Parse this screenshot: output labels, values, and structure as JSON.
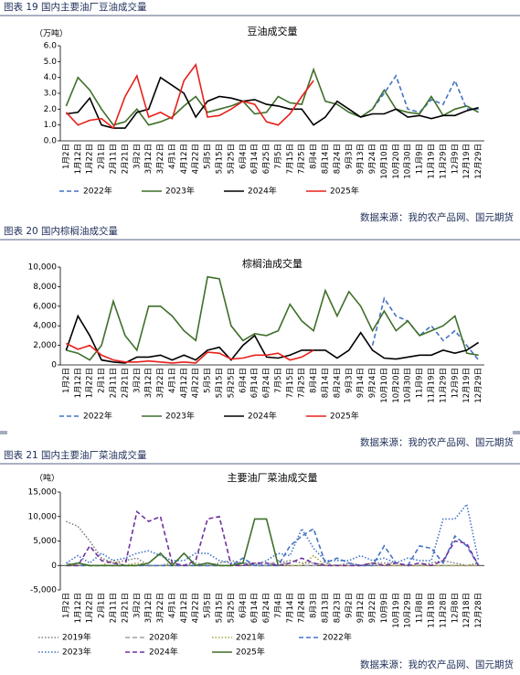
{
  "chart_data": [
    {
      "type": "line",
      "caption": "图表 19 国内主要油厂豆油成交量",
      "title": "豆油成交量",
      "unit": "（万吨）",
      "source": "数据来源：我的农产品网、国元期货",
      "categories": [
        "1月2日",
        "1月12日",
        "1月22日",
        "2月1日",
        "2月11日",
        "2月21日",
        "3月2日",
        "3月12日",
        "3月22日",
        "4月1日",
        "4月12日",
        "4月22日",
        "5月5日",
        "5月15日",
        "5月25日",
        "6月4日",
        "6月14日",
        "6月25日",
        "7月5日",
        "7月15日",
        "7月25日",
        "8月4日",
        "8月14日",
        "8月24日",
        "9月3日",
        "9月13日",
        "9月24日",
        "10月10日",
        "10月20日",
        "10月30日",
        "11月9日",
        "11月19日",
        "11月29日",
        "12月9日",
        "12月19日",
        "12月29日"
      ],
      "ylim": [
        0,
        6
      ],
      "yticks": [
        {
          "value": 0,
          "label": "0.0"
        },
        {
          "value": 1,
          "label": "1.0"
        },
        {
          "value": 2,
          "label": "2.0"
        },
        {
          "value": 3,
          "label": "3.0"
        },
        {
          "value": 4,
          "label": "4.0"
        },
        {
          "value": 5,
          "label": "5.0"
        },
        {
          "value": 6,
          "label": "6.0"
        }
      ],
      "series": [
        {
          "name": "2022年",
          "color": "#4472c4",
          "dash": "dashed",
          "values": [
            null,
            null,
            null,
            null,
            null,
            null,
            null,
            null,
            null,
            null,
            null,
            null,
            null,
            null,
            null,
            null,
            null,
            null,
            null,
            null,
            null,
            null,
            null,
            null,
            null,
            1.5,
            2.0,
            3.0,
            4.1,
            2.0,
            1.8,
            2.6,
            2.3,
            3.8,
            2.0,
            2.0
          ]
        },
        {
          "name": "2023年",
          "color": "#3f6f2a",
          "dash": "solid",
          "values": [
            2.2,
            4.0,
            3.2,
            2.0,
            1.0,
            1.2,
            2.0,
            1.0,
            1.2,
            1.5,
            2.2,
            2.8,
            1.8,
            2.0,
            2.2,
            2.5,
            1.7,
            1.8,
            2.8,
            2.4,
            2.3,
            4.5,
            2.5,
            2.3,
            1.8,
            1.5,
            2.0,
            3.2,
            2.0,
            1.8,
            1.7,
            2.8,
            1.6,
            2.0,
            2.2,
            1.8
          ]
        },
        {
          "name": "2024年",
          "color": "#000000",
          "dash": "solid",
          "values": [
            1.7,
            1.8,
            2.7,
            1.0,
            0.8,
            0.8,
            1.8,
            2.0,
            4.0,
            3.5,
            3.0,
            1.5,
            2.5,
            2.8,
            2.7,
            2.5,
            2.6,
            2.3,
            2.2,
            2.0,
            2.0,
            1.0,
            1.5,
            2.5,
            2.0,
            1.5,
            1.7,
            1.7,
            2.0,
            1.5,
            1.6,
            1.4,
            1.6,
            1.6,
            1.9,
            2.1
          ]
        },
        {
          "name": "2025年",
          "color": "#e8201a",
          "dash": "solid",
          "values": [
            1.8,
            1.0,
            1.3,
            1.4,
            0.8,
            2.8,
            4.1,
            1.5,
            1.8,
            1.4,
            3.8,
            4.8,
            1.5,
            1.6,
            2.0,
            2.5,
            2.3,
            1.2,
            1.0,
            1.7,
            2.8,
            3.8,
            null,
            null,
            null,
            null,
            null,
            null,
            null,
            null,
            null,
            null,
            null,
            null,
            null,
            null
          ]
        }
      ]
    },
    {
      "type": "line",
      "caption": "图表 20 国内棕榈油成交量",
      "title": "棕榈油成交量",
      "source": "数据来源：我的农产品网、国元期货",
      "categories": [
        "1月2日",
        "1月12日",
        "1月22日",
        "2月1日",
        "2月11日",
        "2月21日",
        "3月2日",
        "3月12日",
        "3月22日",
        "4月1日",
        "4月12日",
        "4月22日",
        "5月5日",
        "5月15日",
        "5月25日",
        "6月4日",
        "6月14日",
        "6月24日",
        "7月5日",
        "7月15日",
        "7月25日",
        "8月4日",
        "8月14日",
        "8月24日",
        "9月3日",
        "9月14日",
        "9月24日",
        "10月10日",
        "10月20日",
        "10月30日",
        "11月9日",
        "11月19日",
        "11月29日",
        "12月9日",
        "12月19日",
        "12月29日"
      ],
      "ylim": [
        0,
        10000
      ],
      "yticks": [
        0,
        {
          "value": 2000,
          "label": "2,000"
        },
        {
          "value": 4000,
          "label": "4,000"
        },
        {
          "value": 6000,
          "label": "6,000"
        },
        {
          "value": 8000,
          "label": "8,000"
        },
        {
          "value": 10000,
          "label": "10,000"
        }
      ],
      "series": [
        {
          "name": "2022年",
          "color": "#4472c4",
          "dash": "dashed",
          "values": [
            null,
            null,
            null,
            null,
            null,
            null,
            null,
            null,
            null,
            null,
            null,
            null,
            null,
            null,
            null,
            null,
            null,
            null,
            null,
            null,
            null,
            null,
            null,
            null,
            null,
            null,
            2000,
            6800,
            5000,
            4500,
            3000,
            4000,
            2500,
            3500,
            2000,
            500
          ]
        },
        {
          "name": "2023年",
          "color": "#3f6f2a",
          "dash": "solid",
          "values": [
            1500,
            1200,
            500,
            2000,
            6500,
            3000,
            1500,
            6000,
            6000,
            5000,
            3500,
            2500,
            9000,
            8800,
            4000,
            2500,
            3200,
            3000,
            3500,
            6200,
            4500,
            3500,
            7600,
            5000,
            7500,
            6000,
            3500,
            5500,
            3500,
            4500,
            3000,
            3500,
            4000,
            5000,
            1200,
            1000
          ]
        },
        {
          "name": "2024年",
          "color": "#000000",
          "dash": "solid",
          "values": [
            1500,
            5000,
            3000,
            500,
            300,
            200,
            800,
            800,
            1000,
            500,
            1000,
            500,
            1500,
            1800,
            500,
            2000,
            3000,
            800,
            700,
            1000,
            1500,
            1500,
            1500,
            700,
            1500,
            3300,
            1500,
            700,
            600,
            800,
            1000,
            1000,
            1500,
            1200,
            1500,
            2300
          ]
        },
        {
          "name": "2025年",
          "color": "#e8201a",
          "dash": "solid",
          "values": [
            2200,
            1600,
            2000,
            1000,
            500,
            300,
            300,
            400,
            300,
            200,
            300,
            200,
            1300,
            1200,
            600,
            700,
            1000,
            1000,
            1200,
            500,
            800,
            1500,
            null,
            null,
            null,
            null,
            null,
            null,
            null,
            null,
            null,
            null,
            null,
            null,
            null,
            null
          ]
        }
      ]
    },
    {
      "type": "line",
      "caption": "图表 21 国内主要油厂菜油成交量",
      "title": "主要油厂菜油成交量",
      "unit": "（吨）",
      "source": "数据来源：我的农产品网、国元期货",
      "categories": [
        "1月2日",
        "1月12日",
        "1月22日",
        "2月1日",
        "2月11日",
        "2月21日",
        "3月2日",
        "3月12日",
        "3月22日",
        "4月1日",
        "4月12日",
        "4月22日",
        "5月5日",
        "5月15日",
        "5月25日",
        "6月4日",
        "6月14日",
        "6月24日",
        "7月4日",
        "7月14日",
        "7月24日",
        "8月3日",
        "8月13日",
        "8月23日",
        "9月2日",
        "9月12日",
        "9月22日",
        "10月9日",
        "10月19日",
        "10月29日",
        "11月8日",
        "11月18日",
        "11月28日",
        "12月8日",
        "12月18日",
        "12月28日"
      ],
      "ylim": [
        -5000,
        15000
      ],
      "yticks": [
        {
          "value": -5000,
          "label": "-5,000"
        },
        0,
        {
          "value": 5000,
          "label": "5,000"
        },
        {
          "value": 10000,
          "label": "10,000"
        },
        {
          "value": 15000,
          "label": "15,000"
        }
      ],
      "series": [
        {
          "name": "2019年",
          "color": "#7f7f7f",
          "dash": "dotted",
          "values": [
            9000,
            8000,
            5000,
            1500,
            500,
            1000,
            1500,
            0,
            0,
            500,
            0,
            500,
            0,
            500,
            1000,
            500,
            500,
            0,
            500,
            1000,
            500,
            500,
            0,
            0,
            500,
            0,
            500,
            500,
            500,
            0,
            0,
            500,
            1000,
            500,
            0,
            500
          ]
        },
        {
          "name": "2020年",
          "color": "#a0a0a0",
          "dash": "dashed",
          "values": [
            500,
            0,
            0,
            0,
            0,
            0,
            0,
            0,
            0,
            0,
            0,
            0,
            0,
            0,
            0,
            500,
            0,
            0,
            1000,
            0,
            0,
            0,
            500,
            0,
            0,
            0,
            0,
            0,
            0,
            0,
            0,
            0,
            0,
            0,
            0,
            0
          ]
        },
        {
          "name": "2021年",
          "color": "#a8a33c",
          "dash": "dotted",
          "values": [
            0,
            0,
            0,
            0,
            1000,
            0,
            500,
            0,
            0,
            0,
            0,
            0,
            0,
            0,
            0,
            500,
            0,
            0,
            0,
            0,
            0,
            2000,
            0,
            0,
            0,
            0,
            500,
            0,
            0,
            0,
            0,
            0,
            0,
            0,
            0,
            0
          ]
        },
        {
          "name": "2022年",
          "color": "#4472c4",
          "dash": "dashed",
          "values": [
            0,
            0,
            0,
            0,
            0,
            0,
            0,
            0,
            0,
            0,
            0,
            0,
            0,
            0,
            0,
            1500,
            0,
            0,
            0,
            4000,
            6000,
            7500,
            500,
            1500,
            500,
            0,
            0,
            4000,
            500,
            0,
            4000,
            3500,
            500,
            6000,
            4000,
            0
          ]
        },
        {
          "name": "2023年",
          "color": "#4472c4",
          "dash": "dotted",
          "values": [
            500,
            2000,
            500,
            2500,
            1000,
            1500,
            2500,
            3000,
            2000,
            1000,
            1000,
            2500,
            2500,
            1000,
            500,
            500,
            0,
            1000,
            2500,
            2000,
            7500,
            3500,
            1000,
            1000,
            1000,
            2000,
            1000,
            1500,
            500,
            1500,
            1000,
            1000,
            9500,
            9500,
            12500,
            1000
          ]
        },
        {
          "name": "2024年",
          "color": "#7030a0",
          "dash": "dashed",
          "values": [
            0,
            0,
            4000,
            1000,
            500,
            0,
            11000,
            9000,
            10000,
            500,
            0,
            1000,
            9500,
            10000,
            0,
            0,
            500,
            500,
            0,
            500,
            1500,
            500,
            0,
            0,
            0,
            0,
            500,
            0,
            500,
            0,
            500,
            0,
            1000,
            5000,
            4500,
            0
          ]
        },
        {
          "name": "2025年",
          "color": "#3f6f2a",
          "dash": "solid",
          "values": [
            0,
            500,
            0,
            0,
            0,
            0,
            0,
            500,
            2500,
            0,
            2500,
            0,
            500,
            0,
            0,
            500,
            9500,
            9500,
            0,
            null,
            null,
            null,
            null,
            null,
            null,
            null,
            null,
            null,
            null,
            null,
            null,
            null,
            null,
            null,
            null,
            null
          ]
        }
      ]
    }
  ]
}
